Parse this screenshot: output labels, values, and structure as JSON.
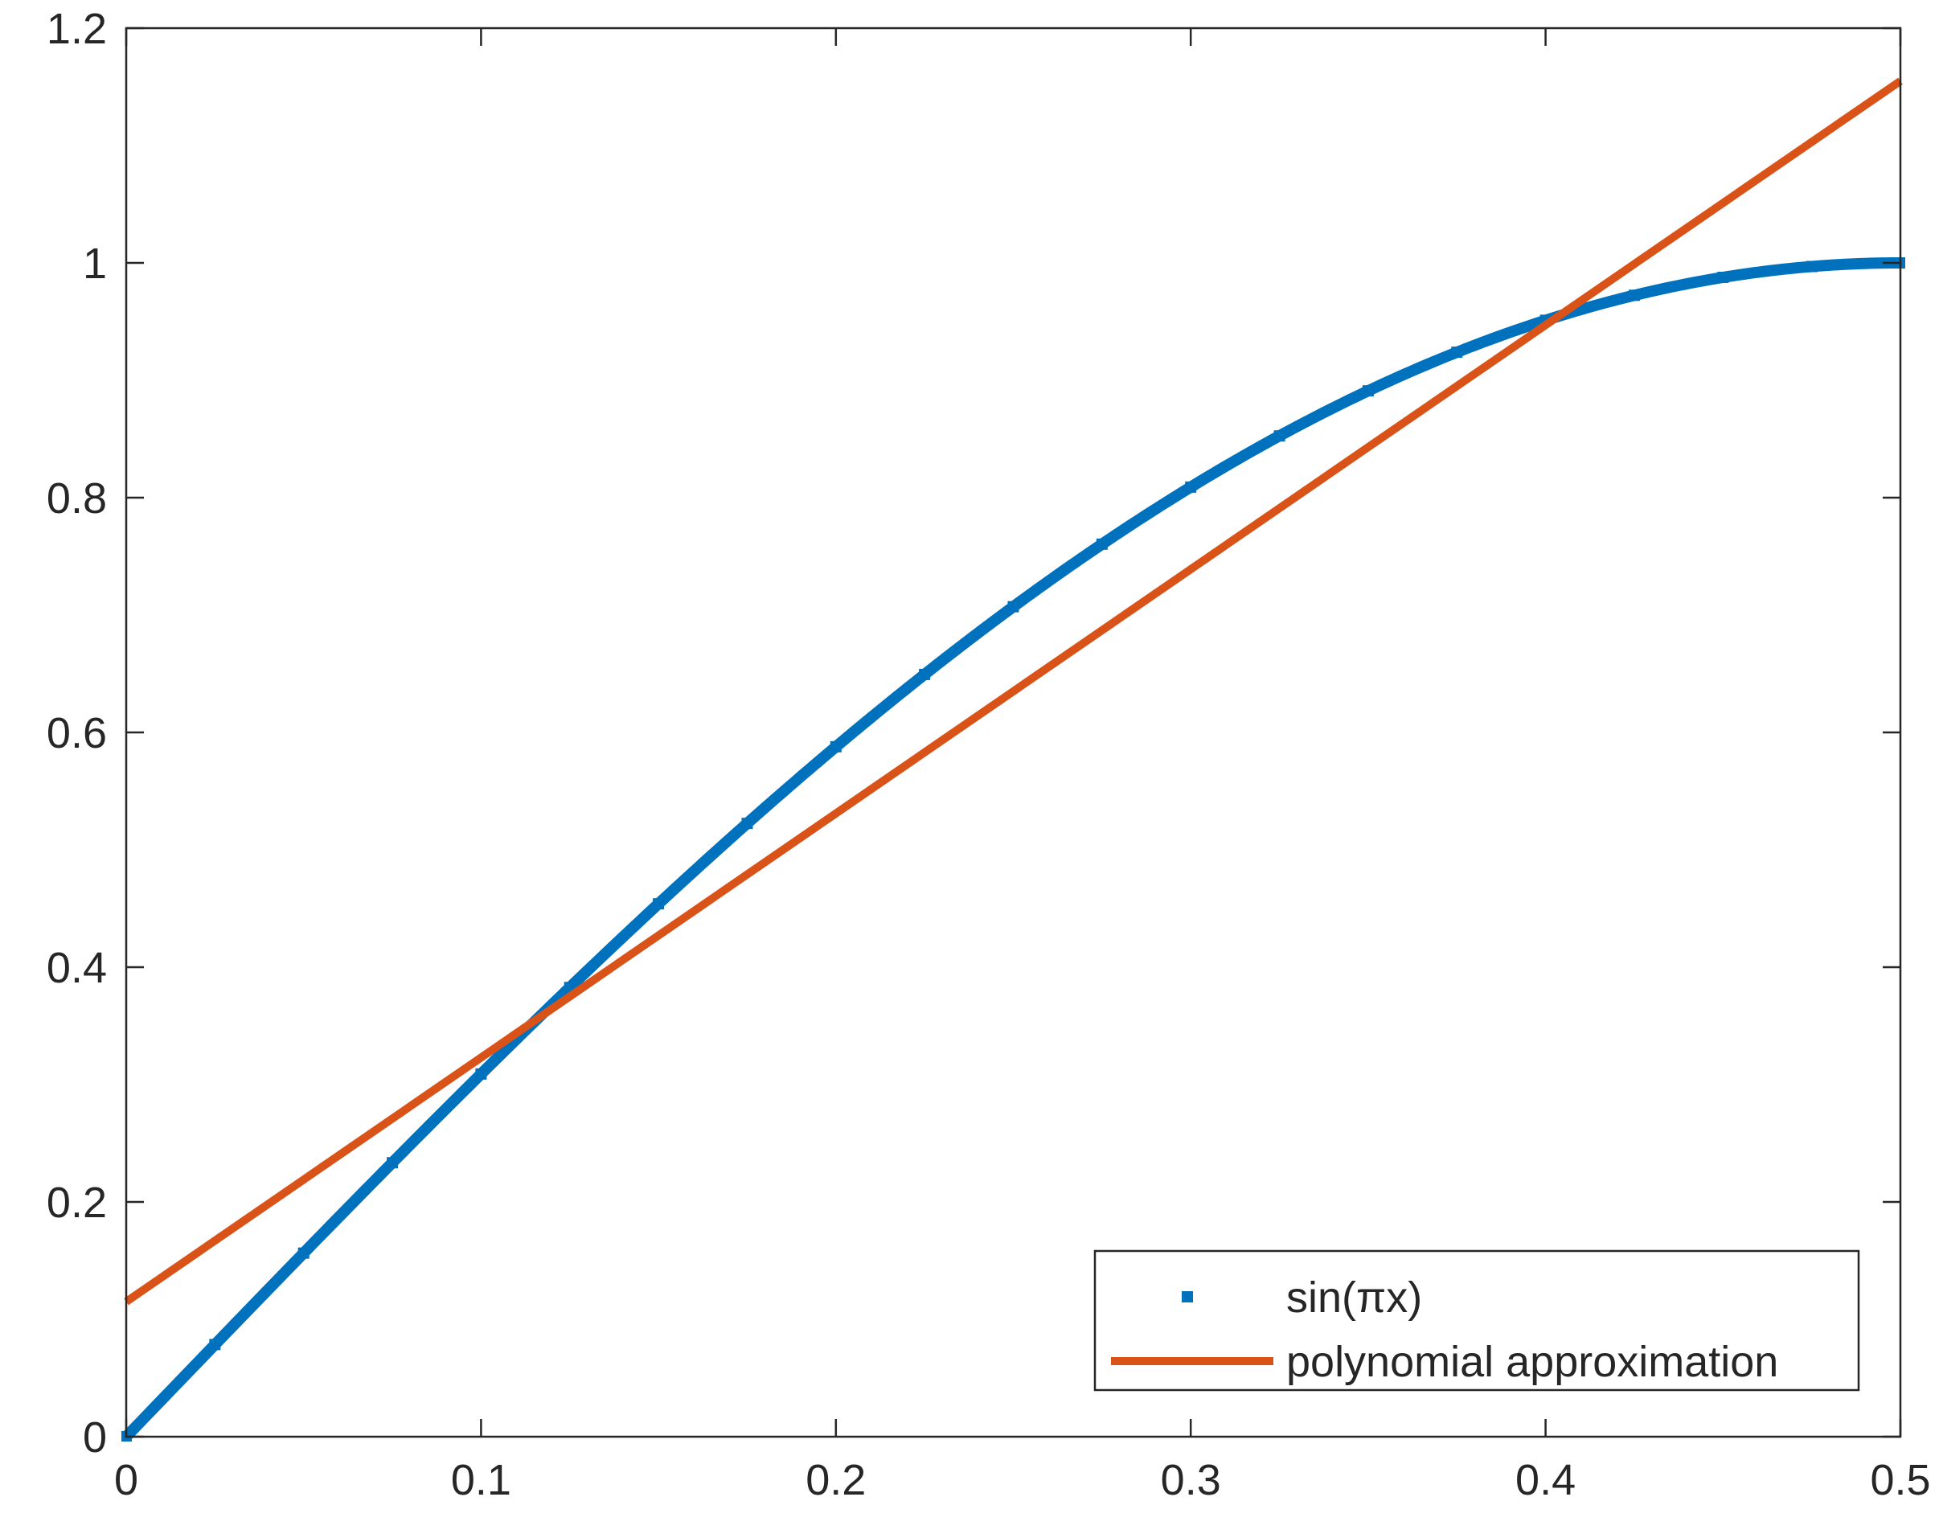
{
  "chart_data": {
    "type": "line",
    "title": "",
    "xlabel": "",
    "ylabel": "",
    "xlim": [
      0,
      0.5
    ],
    "ylim": [
      0,
      1.2
    ],
    "x_ticks": [
      0,
      0.1,
      0.2,
      0.3,
      0.4,
      0.5
    ],
    "x_tick_labels": [
      "0",
      "0.1",
      "0.2",
      "0.3",
      "0.4",
      "0.5"
    ],
    "y_ticks": [
      0,
      0.2,
      0.4,
      0.6,
      0.8,
      1,
      1.2
    ],
    "y_tick_labels": [
      "0",
      "0.2",
      "0.4",
      "0.6",
      "0.8",
      "1",
      "1.2"
    ],
    "grid": false,
    "legend_position": "bottom-right",
    "series": [
      {
        "name": "sin(πx)",
        "style": "markers",
        "color": "#0072BD",
        "x": [
          0,
          0.025,
          0.05,
          0.075,
          0.1,
          0.125,
          0.15,
          0.175,
          0.2,
          0.225,
          0.25,
          0.275,
          0.3,
          0.325,
          0.35,
          0.375,
          0.4,
          0.425,
          0.45,
          0.475,
          0.5
        ],
        "y": [
          0,
          0.0785,
          0.1564,
          0.2334,
          0.309,
          0.3827,
          0.454,
          0.5225,
          0.5878,
          0.6494,
          0.7071,
          0.7604,
          0.809,
          0.8526,
          0.891,
          0.9239,
          0.9511,
          0.9724,
          0.9877,
          0.9969,
          1
        ]
      },
      {
        "name": "polynomial approximation",
        "style": "line",
        "color": "#D95319",
        "x": [
          0,
          0.5
        ],
        "y": [
          0.115,
          1.155
        ]
      }
    ]
  }
}
